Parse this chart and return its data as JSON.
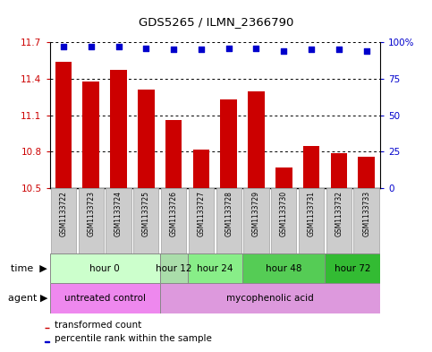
{
  "title": "GDS5265 / ILMN_2366790",
  "samples": [
    "GSM1133722",
    "GSM1133723",
    "GSM1133724",
    "GSM1133725",
    "GSM1133726",
    "GSM1133727",
    "GSM1133728",
    "GSM1133729",
    "GSM1133730",
    "GSM1133731",
    "GSM1133732",
    "GSM1133733"
  ],
  "bar_values": [
    11.54,
    11.38,
    11.47,
    11.31,
    11.06,
    10.82,
    11.23,
    11.3,
    10.67,
    10.85,
    10.79,
    10.76
  ],
  "percentile_values": [
    97,
    97,
    97,
    96,
    95,
    95,
    96,
    96,
    94,
    95,
    95,
    94
  ],
  "bar_color": "#cc0000",
  "percentile_color": "#0000cc",
  "ylim_left": [
    10.5,
    11.7
  ],
  "yticks_left": [
    10.5,
    10.8,
    11.1,
    11.4,
    11.7
  ],
  "ytick_labels_left": [
    "10.5",
    "10.8",
    "11.1",
    "11.4",
    "11.7"
  ],
  "yticks_right": [
    0,
    25,
    50,
    75,
    100
  ],
  "ytick_labels_right": [
    "0",
    "25",
    "50",
    "75",
    "100%"
  ],
  "time_groups": [
    {
      "label": "hour 0",
      "start": 0,
      "end": 3,
      "color": "#ccffcc"
    },
    {
      "label": "hour 12",
      "start": 4,
      "end": 4,
      "color": "#aaddaa"
    },
    {
      "label": "hour 24",
      "start": 5,
      "end": 6,
      "color": "#88ee88"
    },
    {
      "label": "hour 48",
      "start": 7,
      "end": 9,
      "color": "#55cc55"
    },
    {
      "label": "hour 72",
      "start": 10,
      "end": 11,
      "color": "#33bb33"
    }
  ],
  "agent_groups": [
    {
      "label": "untreated control",
      "start": 0,
      "end": 3,
      "color": "#ee88ee"
    },
    {
      "label": "mycophenolic acid",
      "start": 4,
      "end": 11,
      "color": "#dd99dd"
    }
  ],
  "legend_bar_label": "transformed count",
  "legend_pct_label": "percentile rank within the sample",
  "bar_width": 0.6
}
